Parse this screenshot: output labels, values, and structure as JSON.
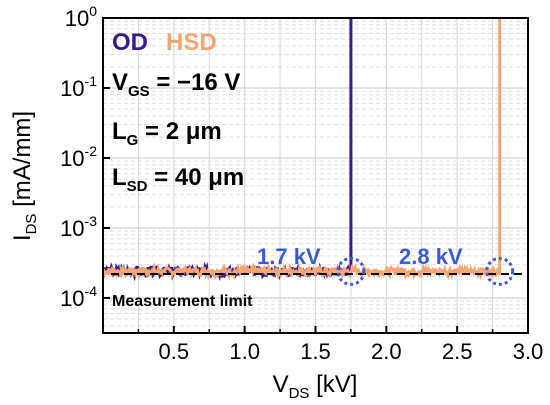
{
  "chart_data": {
    "type": "line",
    "xlabel": {
      "main": "V",
      "sub": "DS",
      "unit": " [kV]"
    },
    "ylabel": {
      "main": "I",
      "sub": "DS",
      "unit": " [mA/mm]"
    },
    "xlim": [
      0,
      3.0
    ],
    "ylim_log10": [
      -4.5,
      0
    ],
    "y_scale": "log",
    "x_ticks": [
      "0.5",
      "1.0",
      "1.5",
      "2.0",
      "2.5",
      "3.0"
    ],
    "x_tick_values": [
      0.5,
      1.0,
      1.5,
      2.0,
      2.5,
      3.0
    ],
    "y_tick_exponents": [
      "0",
      "-1",
      "-2",
      "-3",
      "-4"
    ],
    "grid": true,
    "legend": [
      {
        "label": "OD",
        "color": "#3b1a8f"
      },
      {
        "label": "HSD",
        "color": "#f4a574"
      }
    ],
    "conditions": [
      {
        "main": "V",
        "sub": "GS",
        "rest": " = −16 V"
      },
      {
        "main": "L",
        "sub": "G",
        "rest": " = 2 μm"
      },
      {
        "main": "L",
        "sub": "SD",
        "rest": " = 40 μm"
      }
    ],
    "series": [
      {
        "name": "OD",
        "color": "#3b1a8f",
        "breakdown_kV": 1.75,
        "floor": 0.00024
      },
      {
        "name": "HSD",
        "color": "#f4a574",
        "breakdown_kV": 2.8,
        "floor": 0.00024
      }
    ],
    "measurement_limit": {
      "label": "Measurement limit",
      "value": 0.00022
    },
    "annotations": [
      {
        "text": "1.7 kV",
        "x": 1.75,
        "color": "#3a5bd9"
      },
      {
        "text": "2.8 kV",
        "x": 2.8,
        "color": "#3a5bd9"
      }
    ]
  }
}
